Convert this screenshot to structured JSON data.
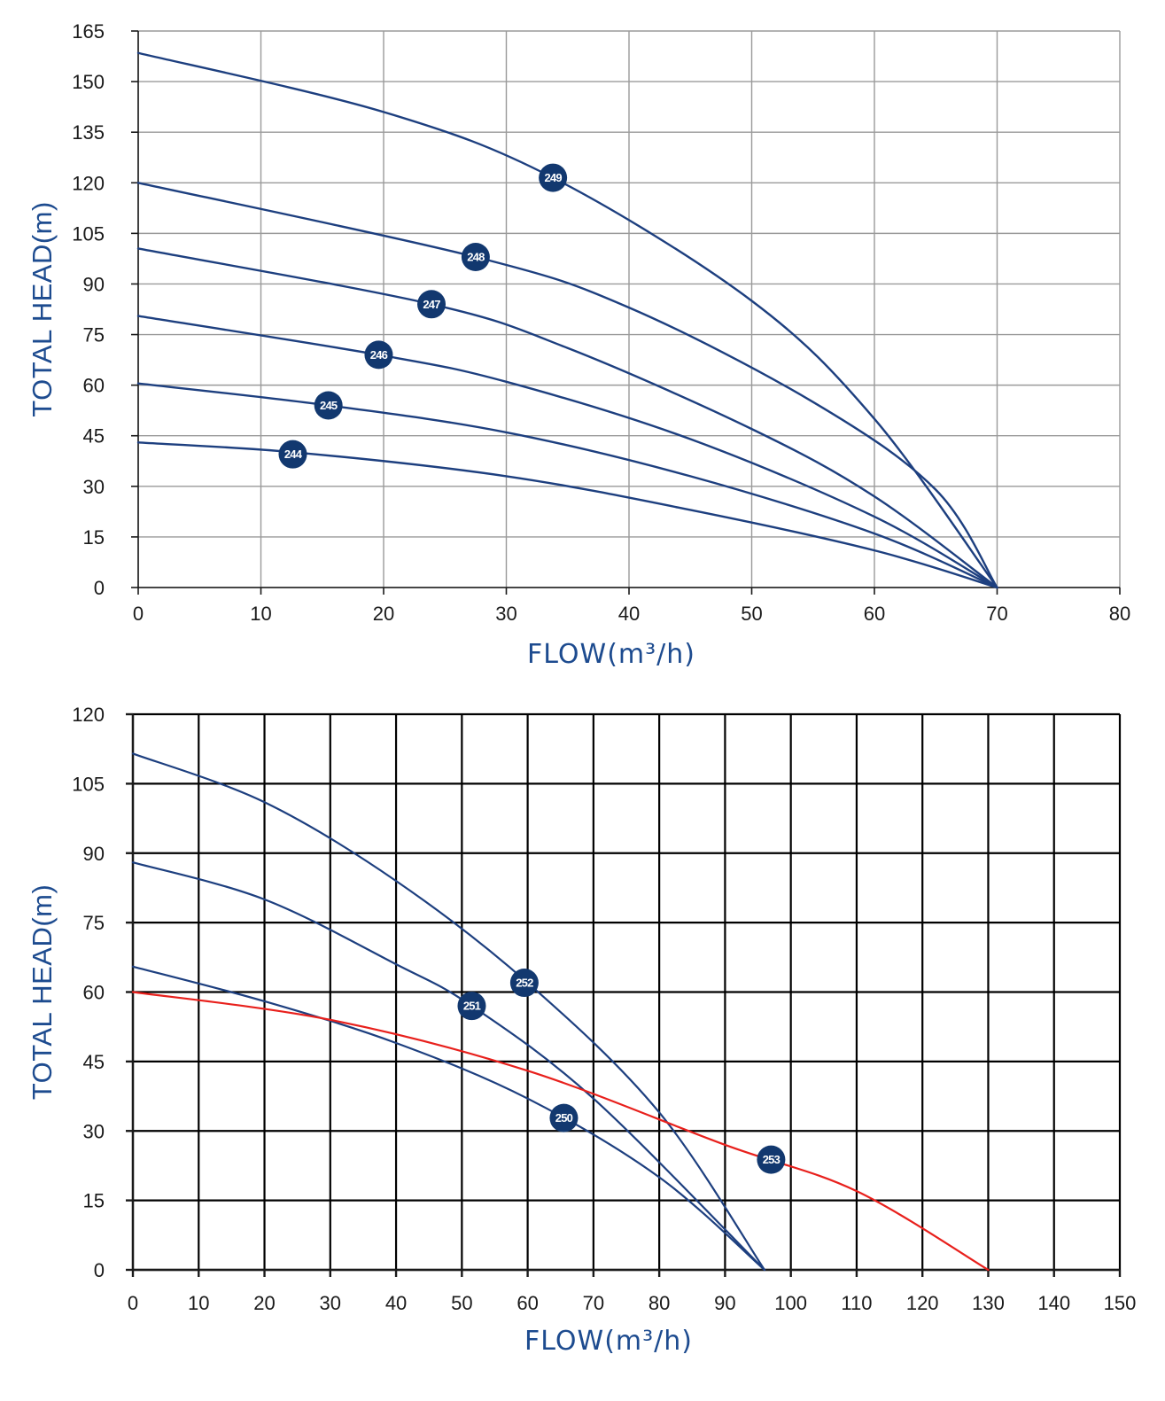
{
  "chart_data": [
    {
      "type": "line",
      "title": "",
      "xlabel": "FLOW(m³/h)",
      "ylabel": "TOTAL HEAD(m)",
      "xlim": [
        0,
        80
      ],
      "ylim": [
        0,
        165
      ],
      "xticks": [
        0,
        10,
        20,
        30,
        40,
        50,
        60,
        70,
        80
      ],
      "yticks": [
        0,
        15,
        30,
        45,
        60,
        75,
        90,
        105,
        120,
        135,
        150,
        165
      ],
      "grid": true,
      "grid_color": "#9a9a9a",
      "line_color": "#1d3f7f",
      "badge_color": "#12386f",
      "series": [
        {
          "name": "244",
          "x": [
            0,
            13,
            30,
            45,
            60,
            70
          ],
          "y": [
            43,
            40,
            33,
            23,
            11,
            0
          ],
          "label_x": 12.6,
          "label_y": 39.5
        },
        {
          "name": "245",
          "x": [
            0,
            15.5,
            30,
            45,
            60,
            70
          ],
          "y": [
            60.5,
            54,
            46,
            33,
            16,
            0
          ],
          "label_x": 15.5,
          "label_y": 54
        },
        {
          "name": "246",
          "x": [
            0,
            19.6,
            30,
            45,
            60,
            70
          ],
          "y": [
            80.5,
            69,
            61,
            44,
            21,
            0
          ],
          "label_x": 19.6,
          "label_y": 69
        },
        {
          "name": "247",
          "x": [
            0,
            23.9,
            35,
            50,
            60,
            70
          ],
          "y": [
            100.5,
            84,
            71,
            47,
            27,
            0
          ],
          "label_x": 23.9,
          "label_y": 84
        },
        {
          "name": "248",
          "x": [
            0,
            27.5,
            40,
            55,
            65,
            70
          ],
          "y": [
            120,
            98,
            83,
            55,
            29,
            0
          ],
          "label_x": 27.5,
          "label_y": 98
        },
        {
          "name": "249",
          "x": [
            0,
            20,
            33.8,
            50,
            60,
            70
          ],
          "y": [
            158.5,
            141,
            121.5,
            85,
            50,
            0
          ],
          "label_x": 33.8,
          "label_y": 121.5
        }
      ]
    },
    {
      "type": "line",
      "title": "",
      "xlabel": "FLOW(m³/h)",
      "ylabel": "TOTAL HEAD(m)",
      "xlim": [
        0,
        150
      ],
      "ylim": [
        0,
        120
      ],
      "xticks": [
        0,
        10,
        20,
        30,
        40,
        50,
        60,
        70,
        80,
        90,
        100,
        110,
        120,
        130,
        140,
        150
      ],
      "yticks": [
        0,
        15,
        30,
        45,
        60,
        75,
        90,
        105,
        120
      ],
      "grid": true,
      "grid_color": "#000000",
      "line_color": "#1d3f7f",
      "badge_color": "#12386f",
      "series": [
        {
          "name": "250",
          "x": [
            0,
            20,
            40,
            60,
            80,
            96
          ],
          "y": [
            65.5,
            58,
            49,
            37,
            20,
            0
          ],
          "label_x": 65.5,
          "label_y": 32.8,
          "color": "#1d3f7f"
        },
        {
          "name": "251",
          "x": [
            0,
            20,
            40,
            51.5,
            70,
            96
          ],
          "y": [
            88,
            80,
            66,
            57,
            37,
            0
          ],
          "label_x": 51.5,
          "label_y": 57,
          "color": "#1d3f7f"
        },
        {
          "name": "252",
          "x": [
            0,
            20,
            40,
            60,
            80,
            96
          ],
          "y": [
            111.5,
            101,
            84,
            62,
            34,
            0
          ],
          "label_x": 59.5,
          "label_y": 62,
          "color": "#1d3f7f"
        },
        {
          "name": "253",
          "x": [
            0,
            30,
            60,
            90,
            110,
            130
          ],
          "y": [
            60,
            54,
            43,
            27,
            17,
            0
          ],
          "label_x": 97,
          "label_y": 23.8,
          "color": "#e8201c"
        }
      ]
    }
  ]
}
